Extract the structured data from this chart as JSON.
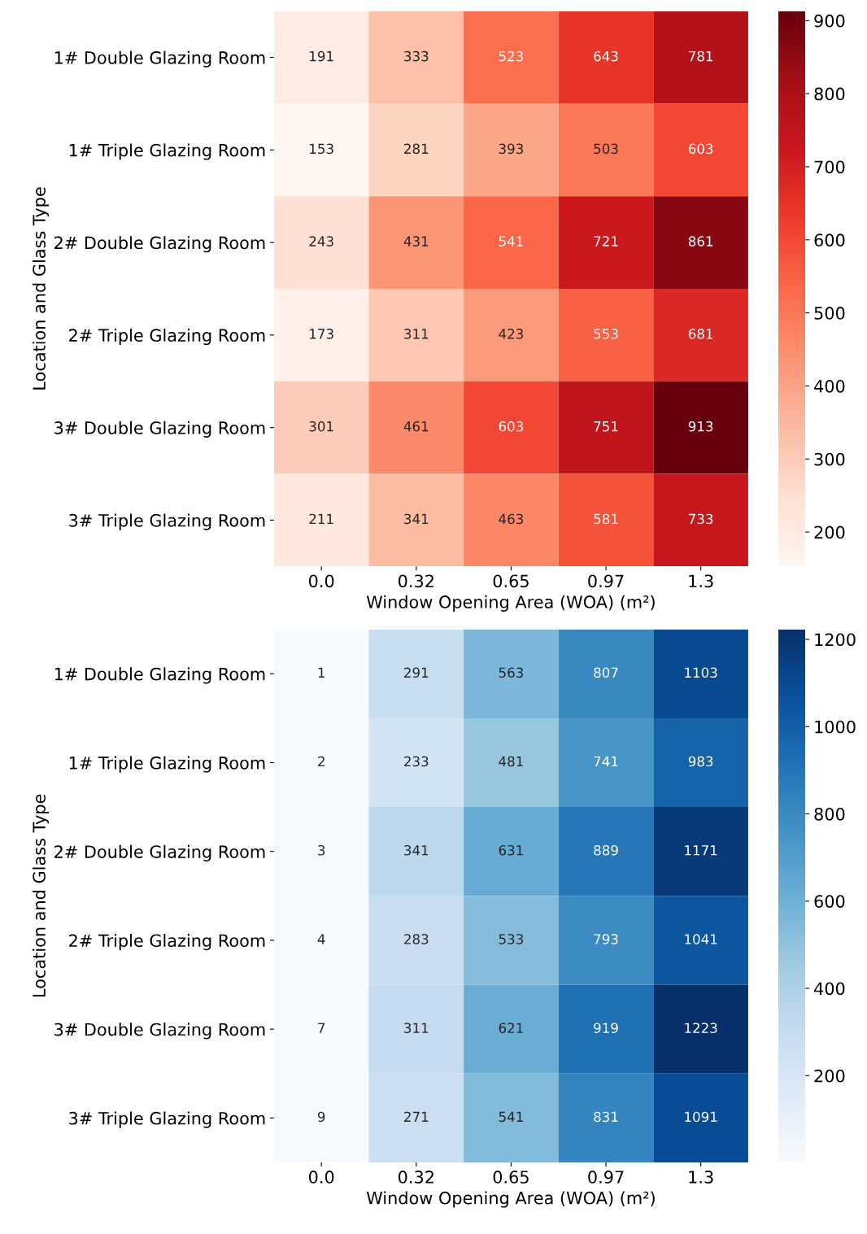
{
  "chart_data": [
    {
      "type": "heatmap",
      "xlabel": "Window Opening Area (WOA) (m²)",
      "ylabel": "Location and Glass Type",
      "categories": [
        "0.0",
        "0.32",
        "0.65",
        "0.97",
        "1.3"
      ],
      "y_categories": [
        "1# Double Glazing Room",
        "1# Triple Glazing Room",
        "2# Double Glazing Room",
        "2# Triple Glazing Room",
        "3# Double Glazing Room",
        "3# Triple Glazing Room"
      ],
      "cells": [
        [
          191,
          333,
          523,
          643,
          781
        ],
        [
          153,
          281,
          393,
          503,
          603
        ],
        [
          243,
          431,
          541,
          721,
          861
        ],
        [
          173,
          311,
          423,
          553,
          681
        ],
        [
          301,
          461,
          603,
          751,
          913
        ],
        [
          211,
          341,
          463,
          581,
          733
        ]
      ],
      "data_labels": true,
      "clim": [
        153,
        913
      ],
      "cticks": [
        200,
        300,
        400,
        500,
        600,
        700,
        800,
        900
      ]
    },
    {
      "type": "heatmap",
      "xlabel": "Window Opening Area (WOA) (m²)",
      "ylabel": "Location and Glass Type",
      "categories": [
        "0.0",
        "0.32",
        "0.65",
        "0.97",
        "1.3"
      ],
      "y_categories": [
        "1# Double Glazing Room",
        "1# Triple Glazing Room",
        "2# Double Glazing Room",
        "2# Triple Glazing Room",
        "3# Double Glazing Room",
        "3# Triple Glazing Room"
      ],
      "cells": [
        [
          1,
          291,
          563,
          807,
          1103
        ],
        [
          2,
          233,
          481,
          741,
          983
        ],
        [
          3,
          341,
          631,
          889,
          1171
        ],
        [
          4,
          283,
          533,
          793,
          1041
        ],
        [
          7,
          311,
          621,
          919,
          1223
        ],
        [
          9,
          271,
          541,
          831,
          1091
        ]
      ],
      "data_labels": true,
      "clim": [
        1,
        1223
      ],
      "cticks": [
        200,
        400,
        600,
        800,
        1000,
        1200
      ]
    }
  ]
}
